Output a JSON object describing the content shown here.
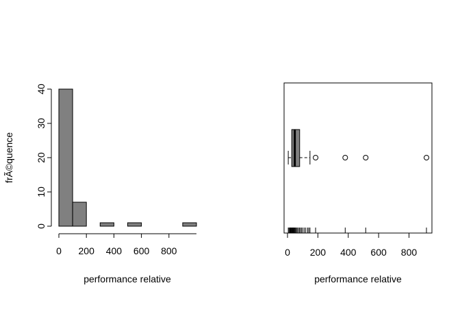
{
  "chart_data": [
    {
      "type": "bar",
      "subtype": "histogram",
      "bin_edges": [
        0,
        100,
        200,
        300,
        400,
        500,
        600,
        700,
        800,
        900,
        1000
      ],
      "counts": [
        40,
        7,
        0,
        1,
        0,
        1,
        0,
        0,
        0,
        1
      ],
      "xlabel": "performance relative",
      "ylabel": "frÃ©quence",
      "xlim": [
        0,
        1000
      ],
      "ylim": [
        0,
        40
      ],
      "x_ticks": [
        0,
        200,
        400,
        600,
        800
      ],
      "y_ticks": [
        0,
        10,
        20,
        30,
        40
      ],
      "bar_color": "#808080",
      "grid": false
    },
    {
      "type": "box",
      "orientation": "horizontal",
      "xlabel": "performance relative",
      "x_ticks": [
        0,
        200,
        400,
        600,
        800
      ],
      "xlim": [
        -10,
        955
      ],
      "box": {
        "whisker_low": 5,
        "q1": 28,
        "median": 48,
        "q3": 80,
        "whisker_high": 148
      },
      "outliers": [
        185,
        380,
        515,
        915
      ],
      "rug": [
        5,
        10,
        15,
        18,
        22,
        25,
        28,
        32,
        36,
        40,
        44,
        48,
        52,
        58,
        63,
        70,
        78,
        84,
        92,
        100,
        110,
        120,
        132,
        140,
        148,
        185,
        380,
        515,
        915
      ],
      "box_color": "#808080",
      "grid": false
    }
  ]
}
